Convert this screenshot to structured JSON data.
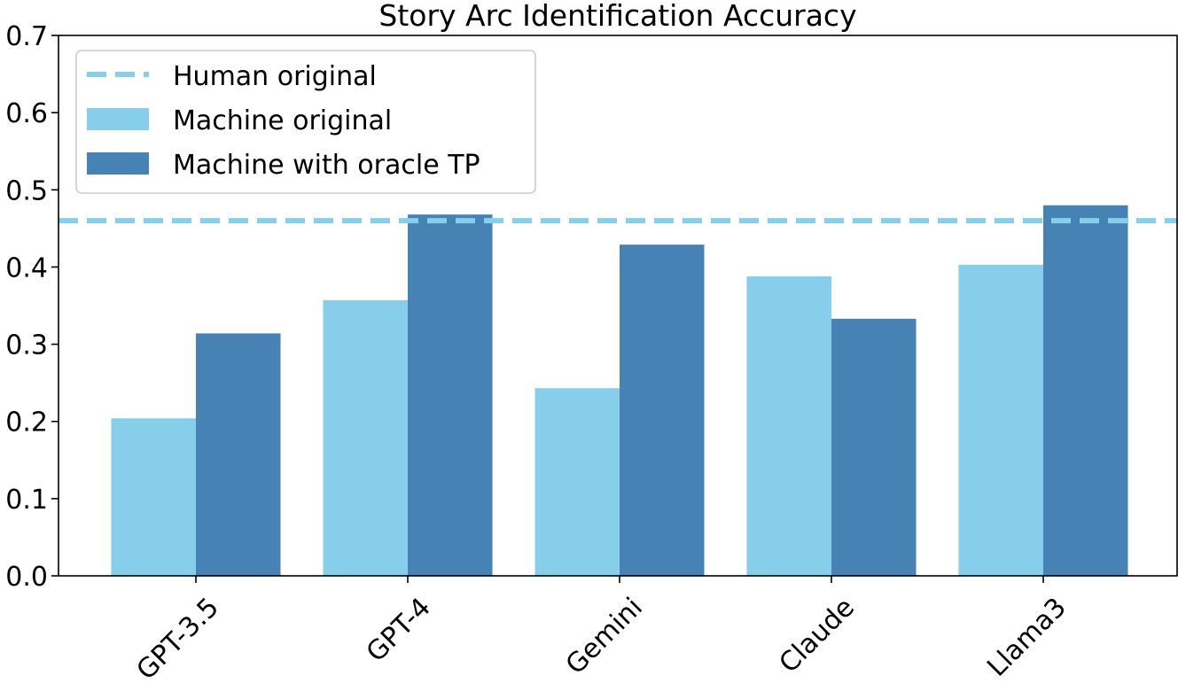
{
  "chart_data": {
    "type": "bar",
    "title": "Story Arc Identification Accuracy",
    "xlabel": "",
    "ylabel": "",
    "categories": [
      "GPT-3.5",
      "GPT-4",
      "Gemini",
      "Claude",
      "Llama3"
    ],
    "series": [
      {
        "name": "Machine original",
        "color": "#87CEEB",
        "values": [
          0.204,
          0.357,
          0.243,
          0.388,
          0.403
        ]
      },
      {
        "name": "Machine with oracle TP",
        "color": "#4682B4",
        "values": [
          0.314,
          0.468,
          0.429,
          0.333,
          0.48
        ]
      }
    ],
    "reference_line": {
      "name": "Human original",
      "value": 0.46,
      "style": "dashed",
      "color": "#87CEEB"
    },
    "ylim": [
      0,
      0.7
    ],
    "yticks": [
      "0.0",
      "0.1",
      "0.2",
      "0.3",
      "0.4",
      "0.5",
      "0.6",
      "0.7"
    ],
    "grid": false,
    "legend_position": "top-left"
  }
}
